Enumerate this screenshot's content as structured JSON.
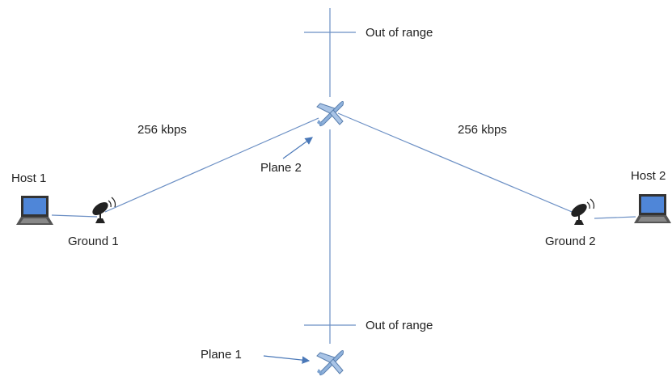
{
  "nodes": [
    {
      "id": "host1",
      "label": "Host 1"
    },
    {
      "id": "ground1",
      "label": "Ground 1"
    },
    {
      "id": "plane2",
      "label": "Plane 2"
    },
    {
      "id": "ground2",
      "label": "Ground 2"
    },
    {
      "id": "host2",
      "label": "Host 2"
    },
    {
      "id": "plane1",
      "label": "Plane 1"
    }
  ],
  "edges": [
    {
      "from": "ground1",
      "to": "plane2",
      "label": "256 kbps"
    },
    {
      "from": "plane2",
      "to": "ground2",
      "label": "256 kbps"
    }
  ],
  "range_marks": [
    {
      "label": "Out of range"
    },
    {
      "label": "Out of range"
    }
  ]
}
